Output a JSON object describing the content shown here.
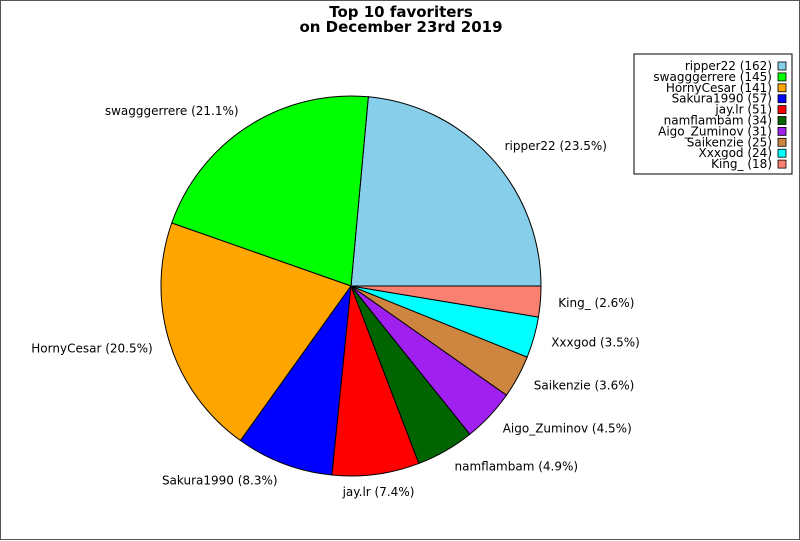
{
  "chart_data": {
    "type": "pie",
    "title_lines": [
      "Top 10 favoriters",
      "on December 23rd 2019"
    ],
    "slices": [
      {
        "name": "ripper22",
        "value": 162,
        "percent_label": "ripper22 (23.5%)",
        "legend_label": "ripper22 (162)",
        "color": "#87CEEB"
      },
      {
        "name": "swagggerrere",
        "value": 145,
        "percent_label": "swagggerrere (21.1%)",
        "legend_label": "swagggerrere (145)",
        "color": "#00FF00"
      },
      {
        "name": "HornyCesar",
        "value": 141,
        "percent_label": "HornyCesar (20.5%)",
        "legend_label": "HornyCesar (141)",
        "color": "#FFA500"
      },
      {
        "name": "Sakura1990",
        "value": 57,
        "percent_label": "Sakura1990 (8.3%)",
        "legend_label": "Sakura1990 (57)",
        "color": "#0000FF"
      },
      {
        "name": "jay.lr",
        "value": 51,
        "percent_label": "jay.lr (7.4%)",
        "legend_label": "jay.lr (51)",
        "color": "#FF0000"
      },
      {
        "name": "namflambam",
        "value": 34,
        "percent_label": "namflambam (4.9%)",
        "legend_label": "namflambam (34)",
        "color": "#006400"
      },
      {
        "name": "Aigo_Zuminov",
        "value": 31,
        "percent_label": "Aigo_Zuminov (4.5%)",
        "legend_label": "Aigo_Zuminov (31)",
        "color": "#A020F0"
      },
      {
        "name": "Saikenzie",
        "value": 25,
        "percent_label": "Saikenzie (3.6%)",
        "legend_label": "Saikenzie (25)",
        "color": "#CD853F"
      },
      {
        "name": "Xxxgod",
        "value": 24,
        "percent_label": "Xxxgod (3.5%)",
        "legend_label": "Xxxgod (24)",
        "color": "#00FFFF"
      },
      {
        "name": "King_",
        "value": 18,
        "percent_label": "King_ (2.6%)",
        "legend_label": "King_ (18)",
        "color": "#FA8072"
      }
    ],
    "legend_placement": "top-right"
  }
}
